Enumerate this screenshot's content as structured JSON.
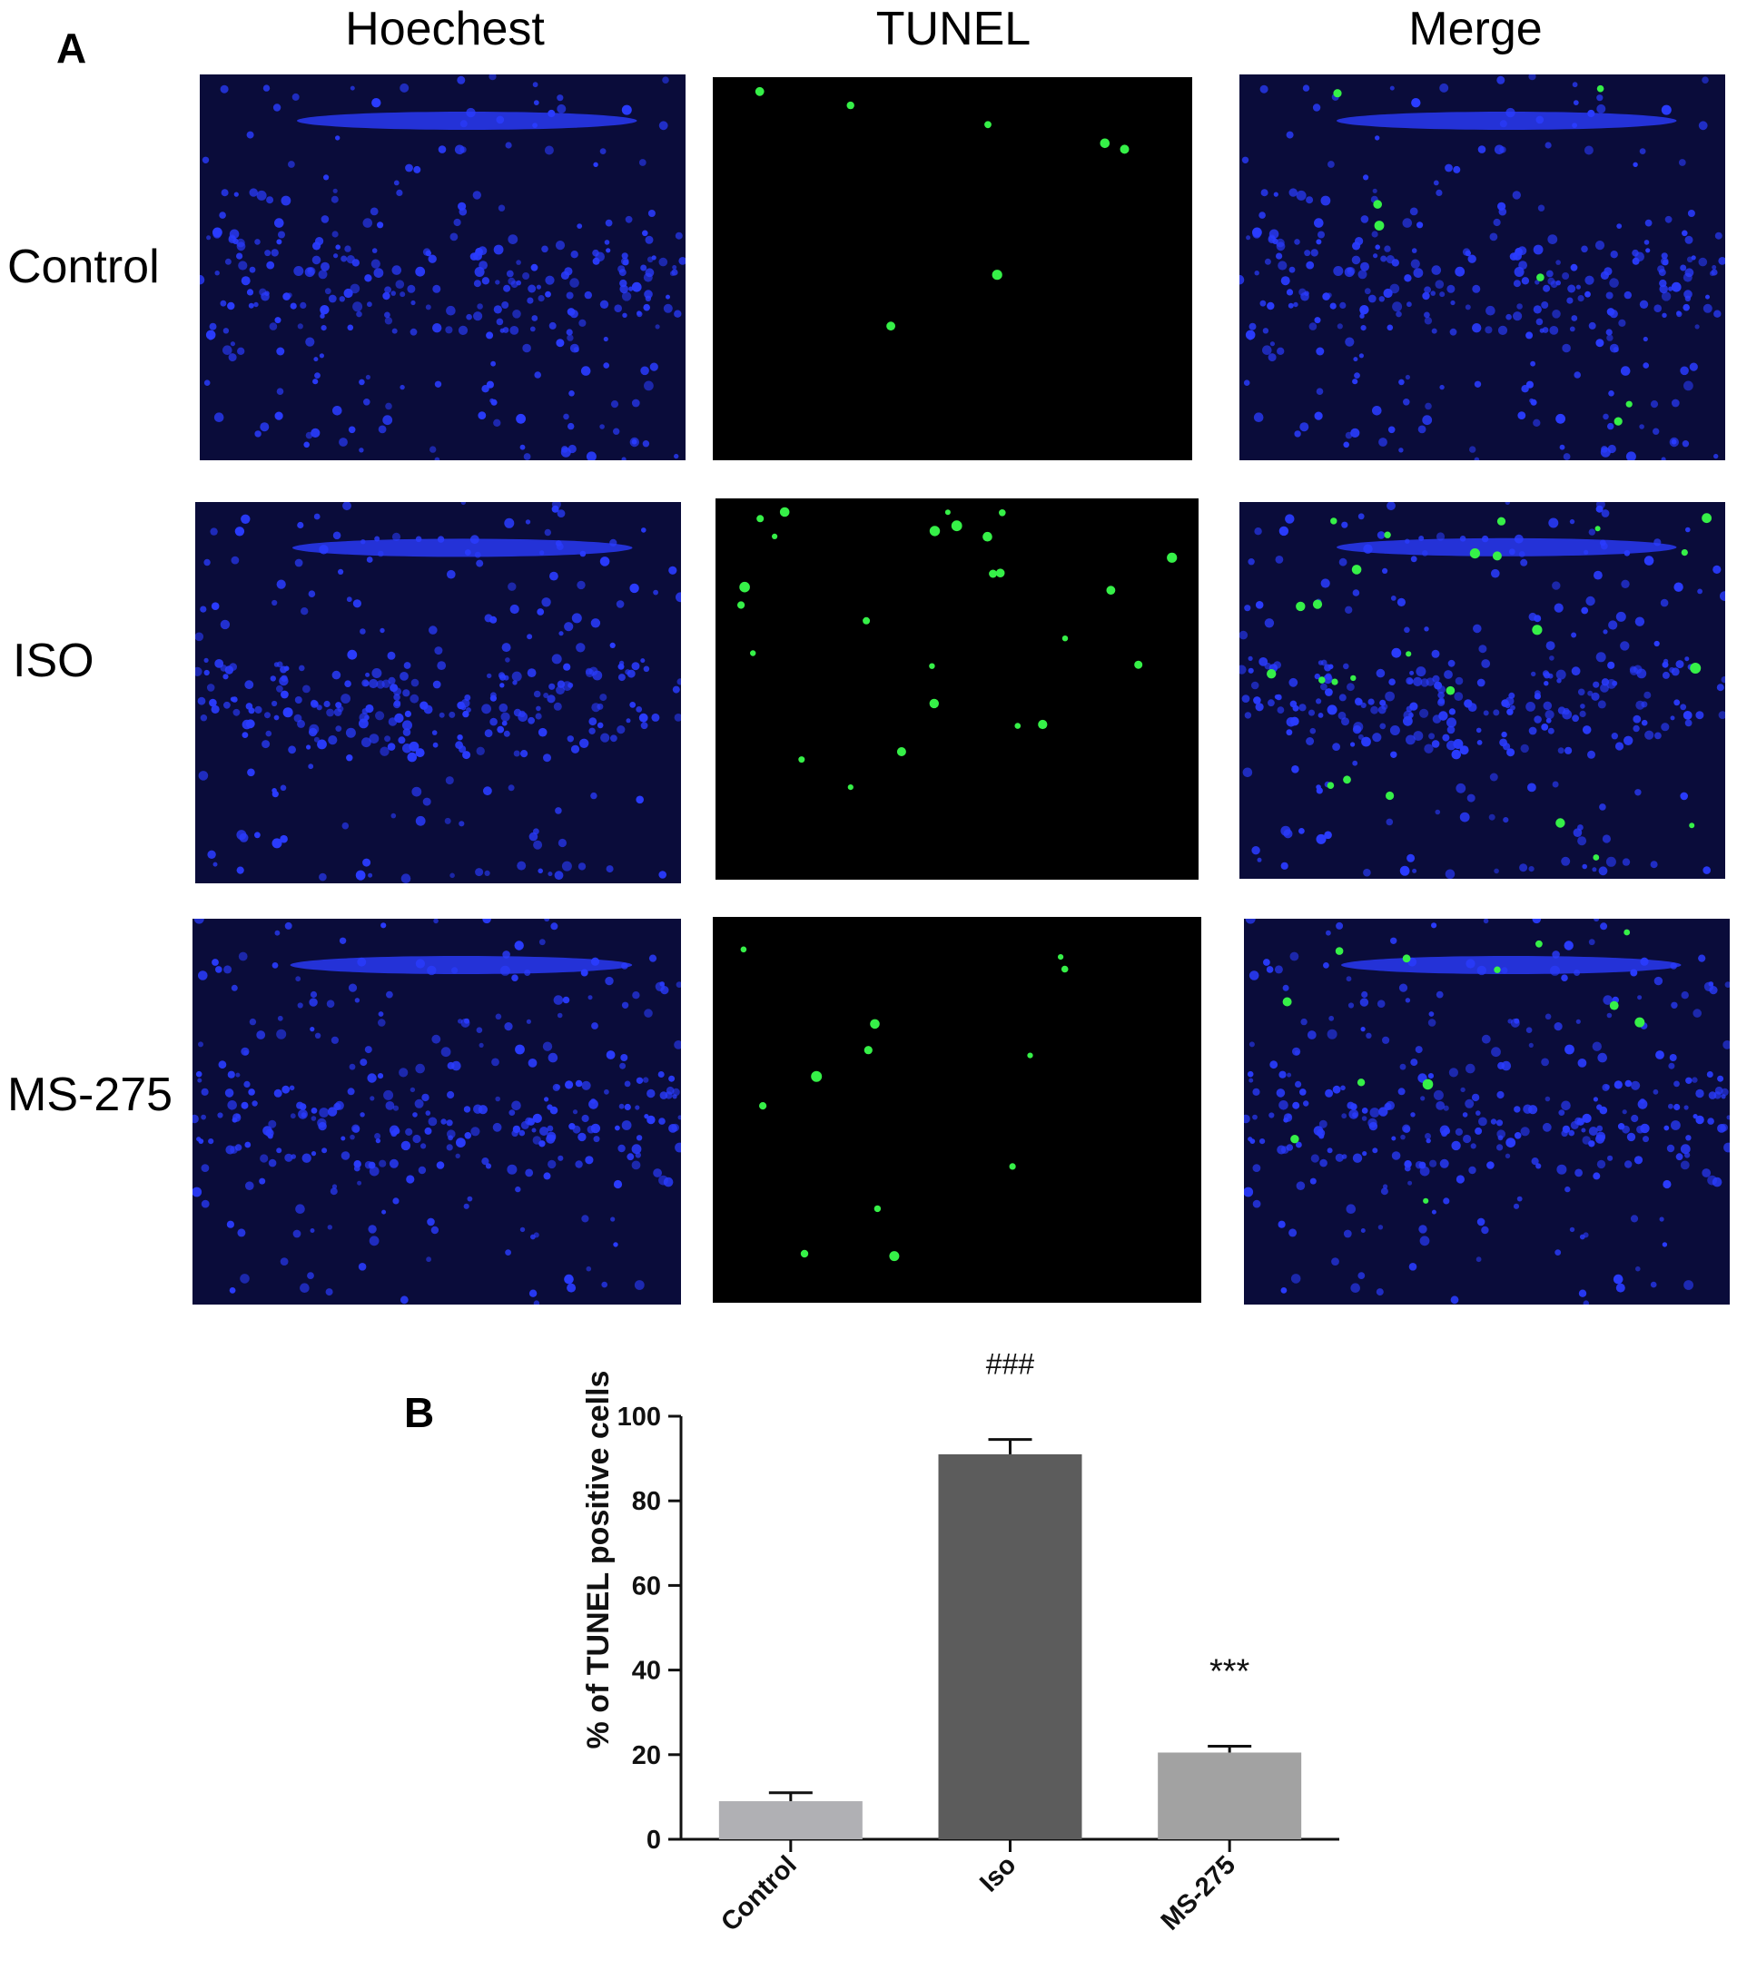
{
  "panel_a": {
    "letter": "A",
    "columns": [
      "Hoechest",
      "TUNEL",
      "Merge"
    ],
    "rows": [
      "Control",
      "ISO",
      "MS-275"
    ],
    "image_kinds": [
      "hoechst-nuclei-blue",
      "tunel-apoptotic-green",
      "merge-overlay"
    ],
    "tunel_positive_dots_visible": [
      7,
      25,
      12
    ],
    "colors": {
      "nuclei": "#2a3cff",
      "tunel": "#36f048",
      "background": "#000000"
    }
  },
  "panel_b": {
    "letter": "B"
  },
  "chart_data": {
    "type": "bar",
    "title": "",
    "xlabel": "",
    "ylabel": "% of TUNEL positive cells",
    "categories": [
      "Control",
      "Iso",
      "MS-275"
    ],
    "values": [
      9,
      91,
      20.5
    ],
    "errors": [
      2,
      3.5,
      1.5
    ],
    "annotations": [
      "",
      "###",
      "***"
    ],
    "bar_colors": [
      "#b0b0b4",
      "#5c5c5c",
      "#a2a2a2"
    ],
    "ylim": [
      0,
      100
    ],
    "yticks": [
      0,
      20,
      40,
      60,
      80,
      100
    ],
    "grid": false,
    "legend": "none"
  }
}
